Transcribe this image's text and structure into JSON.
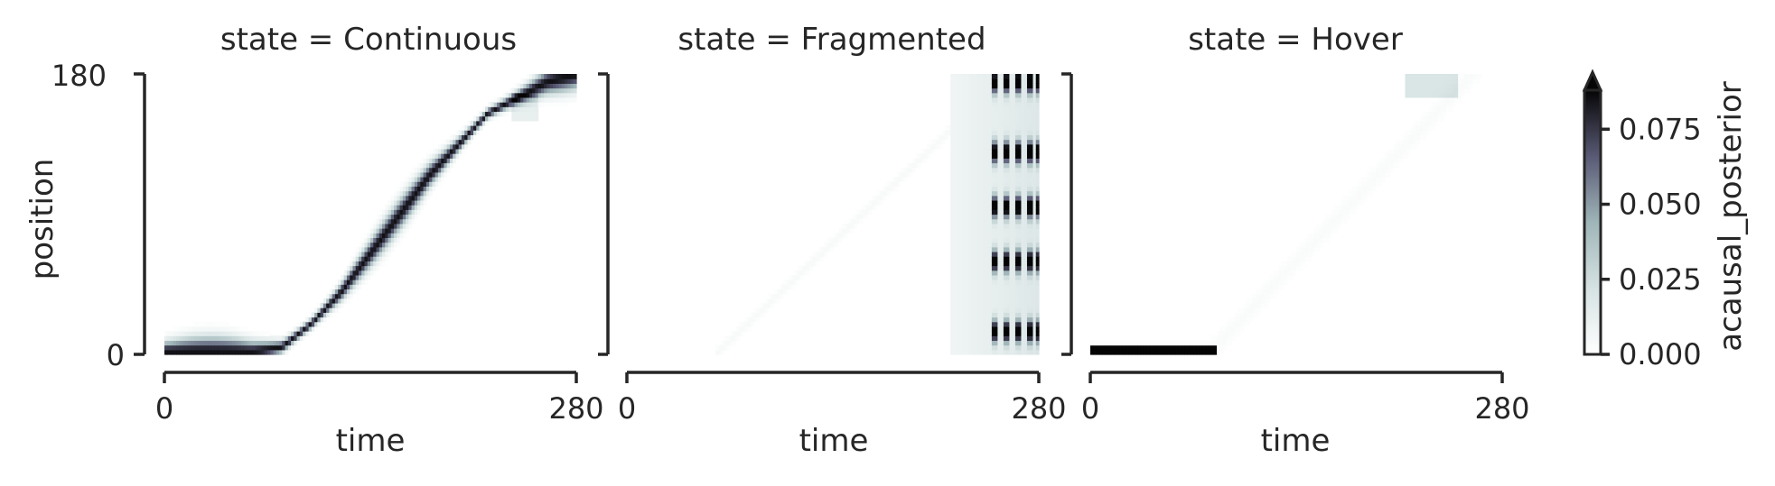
{
  "chart_data": [
    {
      "type": "heatmap",
      "title": "state = Continuous",
      "xlabel": "time",
      "ylabel": "position",
      "xlim": [
        0,
        280
      ],
      "ylim": [
        0,
        180
      ],
      "xticks": [
        "0",
        "280"
      ],
      "yticks": [
        "0",
        "180"
      ],
      "pattern": "continuous",
      "description_values": {
        "trajectory": [
          [
            0,
            2
          ],
          [
            60,
            2
          ],
          [
            80,
            5
          ],
          [
            100,
            20
          ],
          [
            120,
            40
          ],
          [
            140,
            65
          ],
          [
            160,
            90
          ],
          [
            180,
            115
          ],
          [
            200,
            135
          ],
          [
            220,
            155
          ],
          [
            240,
            165
          ],
          [
            260,
            175
          ],
          [
            280,
            180
          ]
        ],
        "peak_value": 0.085
      }
    },
    {
      "type": "heatmap",
      "title": "state = Fragmented",
      "xlabel": "time",
      "xlim": [
        0,
        280
      ],
      "ylim": [
        0,
        180
      ],
      "xticks": [
        "0",
        "280"
      ],
      "pattern": "fragmented",
      "description_values": {
        "band_start_time": 220,
        "dark_stripes_time": [
          250,
          258,
          266,
          274,
          280
        ],
        "dark_position_clusters": [
          15,
          60,
          95,
          130,
          175
        ]
      }
    },
    {
      "type": "heatmap",
      "title": "state = Hover",
      "xlabel": "time",
      "xlim": [
        0,
        280
      ],
      "ylim": [
        0,
        180
      ],
      "xticks": [
        "0",
        "280"
      ],
      "pattern": "hover",
      "description_values": {
        "hover_segment": [
          [
            0,
            85
          ],
          [
            3,
            3
          ]
        ],
        "faint_top_patch": [
          [
            215,
            250
          ],
          [
            165,
            180
          ]
        ]
      }
    }
  ],
  "colorbar": {
    "label": "acausal_posterior",
    "ticks": [
      "0.000",
      "0.025",
      "0.050",
      "0.075"
    ],
    "tick_values": [
      0.0,
      0.025,
      0.05,
      0.075
    ],
    "vmin": 0.0,
    "vmax": 0.088,
    "extend": "max",
    "colormap": "bone_r"
  },
  "colors": {
    "axis": "#262626",
    "cmap_low": "#ffffff",
    "cmap_mid": "#8fb0b0",
    "cmap_high": "#000000"
  }
}
